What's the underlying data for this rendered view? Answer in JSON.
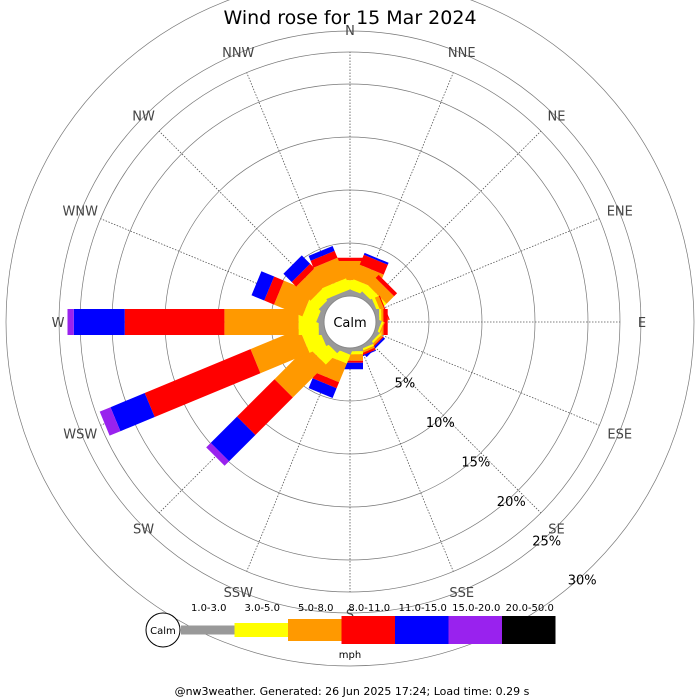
{
  "chart_data": {
    "type": "wind-rose",
    "title": "Wind rose for 15 Mar 2024",
    "calm_label": "Calm",
    "unit": "mph",
    "footer": "@nw3weather. Generated: 26 Jun 2025 17:24; Load time: 0.29 s",
    "directions": [
      "N",
      "NNE",
      "NE",
      "ENE",
      "E",
      "ESE",
      "SE",
      "SSE",
      "S",
      "SSW",
      "SW",
      "WSW",
      "W",
      "WNW",
      "NW",
      "NNW"
    ],
    "radial_ticks": [
      {
        "value": 5,
        "label": "5%"
      },
      {
        "value": 10,
        "label": "10%"
      },
      {
        "value": 15,
        "label": "15%"
      },
      {
        "value": 20,
        "label": "20%"
      },
      {
        "value": 25,
        "label": "25%"
      },
      {
        "value": 30,
        "label": "30%"
      }
    ],
    "bins": [
      {
        "label": "1.0-3.0",
        "color": "#999999"
      },
      {
        "label": "3.0-5.0",
        "color": "#ffff00"
      },
      {
        "label": "5.0-8.0",
        "color": "#ff9900"
      },
      {
        "label": "8.0-11.0",
        "color": "#ff0000"
      },
      {
        "label": "11.0-15.0",
        "color": "#0000ff"
      },
      {
        "label": "15.0-20.0",
        "color": "#9922ee"
      },
      {
        "label": "20.0-50.0",
        "color": "#000000"
      }
    ],
    "series": [
      {
        "direction": "N",
        "values": [
          0.4,
          1.1,
          1.8,
          0.3,
          0.0,
          0.0,
          0.0
        ]
      },
      {
        "direction": "NNE",
        "values": [
          0.4,
          1.0,
          1.5,
          1.0,
          0.2,
          0.0,
          0.0
        ]
      },
      {
        "direction": "NE",
        "values": [
          0.4,
          0.8,
          1.0,
          0.4,
          0.0,
          0.0,
          0.0
        ]
      },
      {
        "direction": "ENE",
        "values": [
          0.3,
          0.3,
          0.4,
          0.1,
          0.0,
          0.0,
          0.0
        ]
      },
      {
        "direction": "E",
        "values": [
          0.3,
          0.2,
          0.2,
          0.4,
          0.0,
          0.0,
          0.0
        ]
      },
      {
        "direction": "ESE",
        "values": [
          0.3,
          0.2,
          0.1,
          0.0,
          0.0,
          0.0,
          0.0
        ]
      },
      {
        "direction": "SE",
        "values": [
          0.3,
          0.2,
          0.2,
          0.1,
          0.2,
          0.0,
          0.0
        ]
      },
      {
        "direction": "SSE",
        "values": [
          0.3,
          0.2,
          0.2,
          0.2,
          0.1,
          0.0,
          0.0
        ]
      },
      {
        "direction": "S",
        "values": [
          0.3,
          0.3,
          0.6,
          0.2,
          0.6,
          0.0,
          0.0
        ]
      },
      {
        "direction": "SSW",
        "values": [
          0.4,
          0.9,
          1.9,
          0.6,
          1.0,
          0.0,
          0.0
        ]
      },
      {
        "direction": "SW",
        "values": [
          0.5,
          1.5,
          4.4,
          5.0,
          3.5,
          0.6,
          0.0
        ]
      },
      {
        "direction": "WSW",
        "values": [
          0.5,
          1.7,
          5.0,
          10.8,
          3.5,
          1.1,
          0.0
        ]
      },
      {
        "direction": "W",
        "values": [
          0.5,
          1.9,
          7.0,
          9.4,
          4.8,
          0.6,
          0.0
        ]
      },
      {
        "direction": "WNW",
        "values": [
          0.5,
          1.4,
          2.9,
          1.0,
          1.3,
          0.0,
          0.0
        ]
      },
      {
        "direction": "NW",
        "values": [
          0.5,
          1.1,
          1.9,
          0.6,
          1.1,
          0.0,
          0.0
        ]
      },
      {
        "direction": "NNW",
        "values": [
          0.4,
          1.1,
          2.1,
          0.7,
          0.5,
          0.0,
          0.0
        ]
      }
    ]
  }
}
